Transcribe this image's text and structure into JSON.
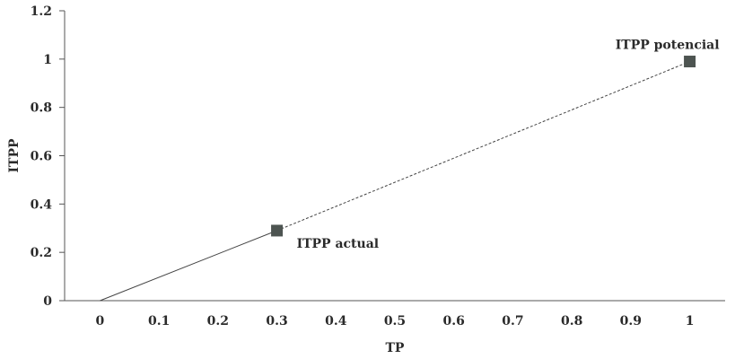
{
  "chart_data": {
    "type": "line",
    "title": "",
    "xlabel": "TP",
    "ylabel": "ITPP",
    "xlim": [
      -0.06,
      1.06
    ],
    "ylim": [
      0,
      1.2
    ],
    "x_ticks": [
      0,
      0.1,
      0.2,
      0.3,
      0.4,
      0.5,
      0.6,
      0.7,
      0.8,
      0.9,
      1
    ],
    "x_tick_labels": [
      "0",
      "0.1",
      "0.2",
      "0.3",
      "0.4",
      "0.5",
      "0.6",
      "0.7",
      "0.8",
      "0.9",
      "1"
    ],
    "y_ticks": [
      0,
      0.2,
      0.4,
      0.6,
      0.8,
      1,
      1.2
    ],
    "y_tick_labels": [
      "0",
      "0.2",
      "0.4",
      "0.6",
      "0.8",
      "1",
      "1.2"
    ],
    "grid": false,
    "series": [
      {
        "style": "solid",
        "color": "#444444",
        "x": [
          0,
          0.3
        ],
        "y": [
          0,
          0.29
        ]
      },
      {
        "style": "dashed",
        "color": "#444444",
        "x": [
          0.3,
          0.8,
          1
        ],
        "y": [
          0.29,
          0.79,
          0.99
        ]
      }
    ],
    "markers": [
      {
        "x": 0.3,
        "y": 0.29,
        "shape": "square",
        "color": "#4d5451"
      },
      {
        "x": 1,
        "y": 0.99,
        "shape": "square",
        "color": "#4d5451"
      }
    ],
    "annotations": [
      {
        "text": "ITPP actual",
        "x": 0.3,
        "y": 0.29,
        "placement": "right-below"
      },
      {
        "text": "ITPP potencial",
        "x": 1,
        "y": 0.99,
        "placement": "left-above"
      }
    ]
  }
}
